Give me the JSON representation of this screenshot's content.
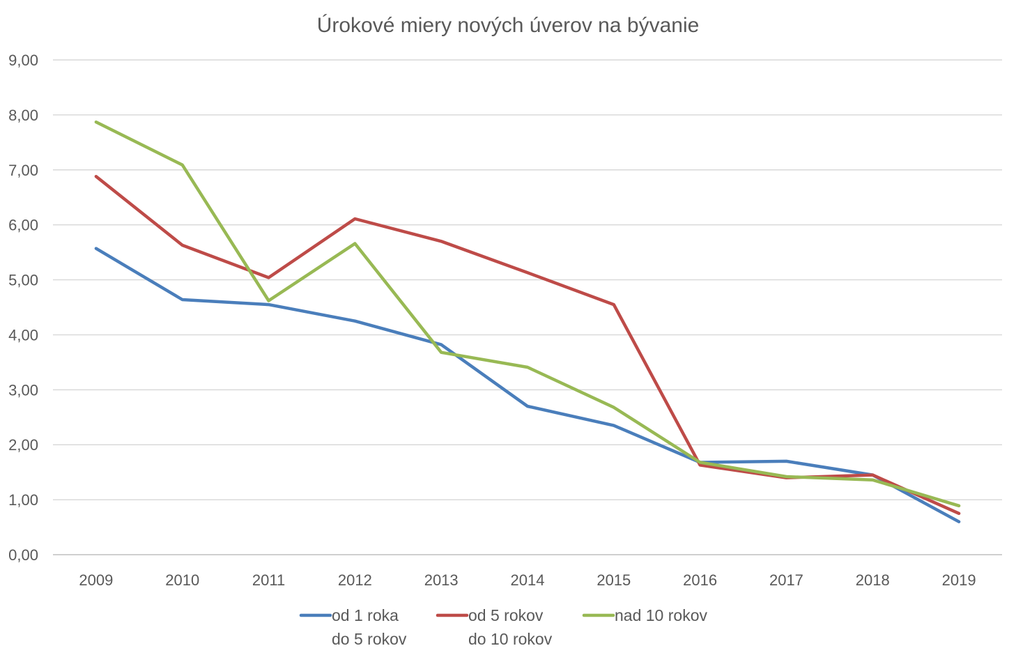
{
  "chart_data": {
    "type": "line",
    "title": "Úrokové miery nových úverov na bývanie",
    "xlabel": "",
    "ylabel": "",
    "categories": [
      "2009",
      "2010",
      "2011",
      "2012",
      "2013",
      "2014",
      "2015",
      "2016",
      "2017",
      "2018",
      "2019"
    ],
    "y_ticks": [
      "0,00",
      "1,00",
      "2,00",
      "3,00",
      "4,00",
      "5,00",
      "6,00",
      "7,00",
      "8,00",
      "9,00"
    ],
    "ylim": [
      0,
      9
    ],
    "grid": true,
    "legend_position": "bottom",
    "series": [
      {
        "name_lines": [
          "od 1 roka",
          "do 5 rokov"
        ],
        "color": "#4a7ebb",
        "values": [
          5.57,
          4.64,
          4.55,
          4.25,
          3.82,
          2.7,
          2.35,
          1.68,
          1.7,
          1.45,
          0.6
        ]
      },
      {
        "name_lines": [
          "od 5 rokov",
          "do 10 rokov"
        ],
        "color": "#be4b48",
        "values": [
          6.88,
          5.63,
          5.04,
          6.11,
          5.7,
          5.13,
          4.55,
          1.63,
          1.4,
          1.45,
          0.75
        ]
      },
      {
        "name_lines": [
          "nad 10 rokov"
        ],
        "color": "#98b954",
        "values": [
          7.87,
          7.09,
          4.62,
          5.66,
          3.68,
          3.41,
          2.68,
          1.68,
          1.42,
          1.36,
          0.89
        ]
      }
    ]
  }
}
